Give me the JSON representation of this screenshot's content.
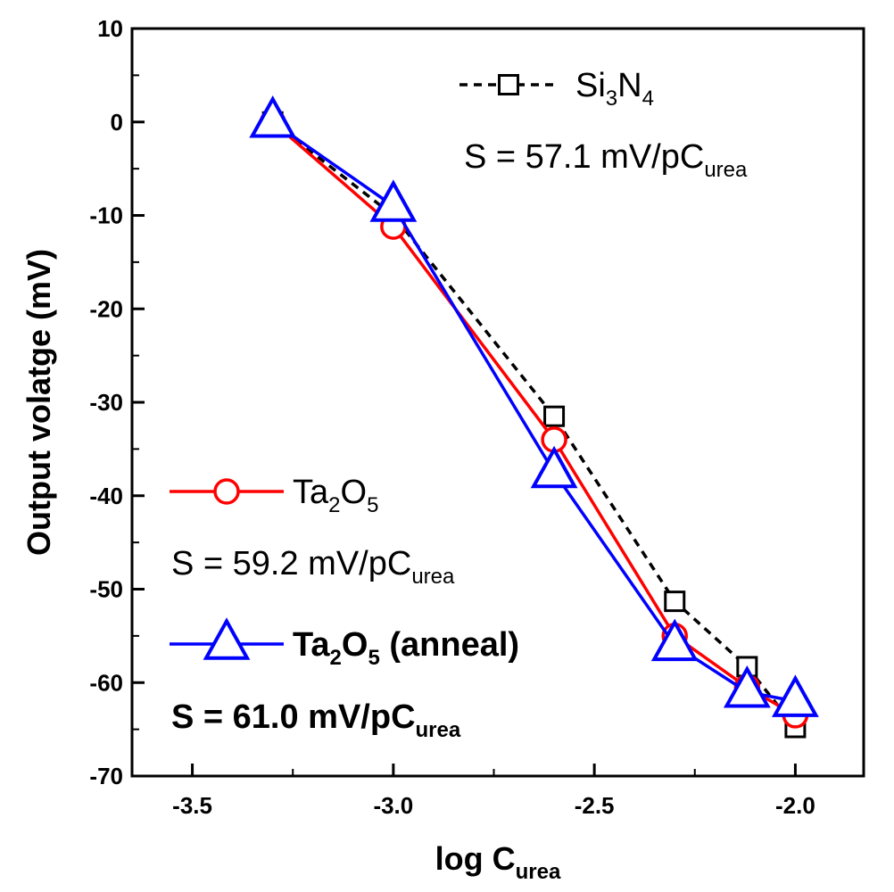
{
  "chart_data": {
    "type": "line",
    "xlabel": {
      "main": "log C",
      "sub": "urea"
    },
    "ylabel": "Output volatge (mV)",
    "xlim": [
      -3.65,
      -1.83
    ],
    "ylim": [
      -70,
      10
    ],
    "x_ticks": [
      -3.5,
      -3.0,
      -2.5,
      -2.0
    ],
    "x_tick_labels": [
      "-3.5",
      "-3.0",
      "-2.5",
      "-2.0"
    ],
    "y_ticks": [
      10,
      0,
      -10,
      -20,
      -30,
      -40,
      -50,
      -60,
      -70
    ],
    "y_tick_labels": [
      "10",
      "0",
      "-10",
      "-20",
      "-30",
      "-40",
      "-50",
      "-60",
      "-70"
    ],
    "grid": false,
    "series": [
      {
        "name": "Si3N4",
        "legend_parts": [
          [
            "Si",
            ""
          ],
          [
            "3",
            "sub"
          ],
          [
            "N",
            ""
          ],
          [
            "4",
            "sub"
          ]
        ],
        "sensitivity": {
          "prefix": "S = 57.1 mV/pC",
          "sub": "urea"
        },
        "color": "#000000",
        "marker": "square",
        "dashed": true,
        "x": [
          -3.3,
          -3.0,
          -2.6,
          -2.3,
          -2.12,
          -2.0
        ],
        "values": [
          0,
          -10,
          -31.5,
          -51.3,
          -58.3,
          -64.8
        ]
      },
      {
        "name": "Ta2O5",
        "legend_parts": [
          [
            "Ta",
            ""
          ],
          [
            "2",
            "sub"
          ],
          [
            "O",
            ""
          ],
          [
            "5",
            "sub"
          ]
        ],
        "sensitivity": {
          "prefix": "S = 59.2 mV/pC",
          "sub": "urea"
        },
        "color": "#ff0000",
        "marker": "circle",
        "dashed": false,
        "x": [
          -3.3,
          -3.0,
          -2.6,
          -2.3,
          -2.12,
          -2.0
        ],
        "values": [
          0,
          -11.2,
          -34.0,
          -55.0,
          -60.5,
          -63.5
        ]
      },
      {
        "name": "Ta2O5 (anneal)",
        "legend_parts": [
          [
            "Ta",
            ""
          ],
          [
            "2",
            "sub"
          ],
          [
            "O",
            ""
          ],
          [
            "5",
            "sub"
          ],
          [
            " (anneal)",
            ""
          ]
        ],
        "sensitivity": {
          "prefix": "S = 61.0 mV/pC",
          "sub": "urea"
        },
        "color": "#0000ff",
        "marker": "triangle",
        "dashed": false,
        "x": [
          -3.3,
          -3.0,
          -2.6,
          -2.3,
          -2.12,
          -2.0
        ],
        "values": [
          0,
          -9.0,
          -37.5,
          -56.0,
          -61.0,
          -62.0
        ]
      }
    ]
  }
}
